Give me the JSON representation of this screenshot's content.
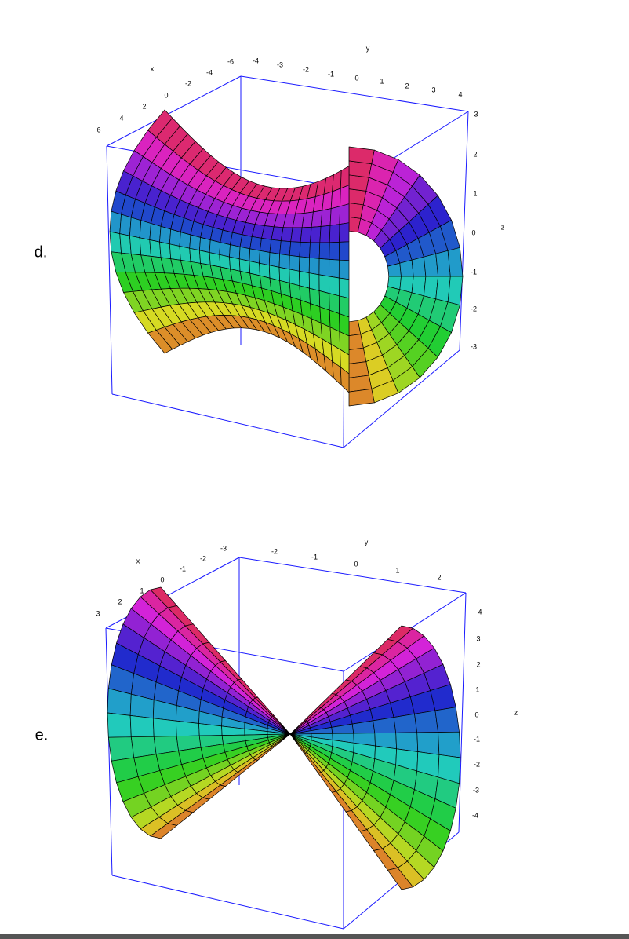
{
  "panels": [
    {
      "label": "d.",
      "x_label": "x",
      "y_label": "y",
      "z_label": "z",
      "x_ticks": [
        "6",
        "4",
        "2",
        "0",
        "-2",
        "-4",
        "-6"
      ],
      "y_ticks": [
        "-4",
        "-3",
        "-2",
        "-1",
        "0",
        "1",
        "2",
        "3",
        "4"
      ],
      "z_ticks": [
        "3",
        "2",
        "1",
        "0",
        "-1",
        "-2",
        "-3"
      ]
    },
    {
      "label": "e.",
      "x_label": "x",
      "y_label": "y",
      "z_label": "z",
      "x_ticks": [
        "3",
        "2",
        "1",
        "0",
        "-1",
        "-2",
        "-3"
      ],
      "y_ticks": [
        "-2",
        "-1",
        "0",
        "1",
        "2"
      ],
      "z_ticks": [
        "4",
        "3",
        "2",
        "1",
        "0",
        "-1",
        "-2",
        "-3",
        "-4"
      ]
    }
  ]
}
